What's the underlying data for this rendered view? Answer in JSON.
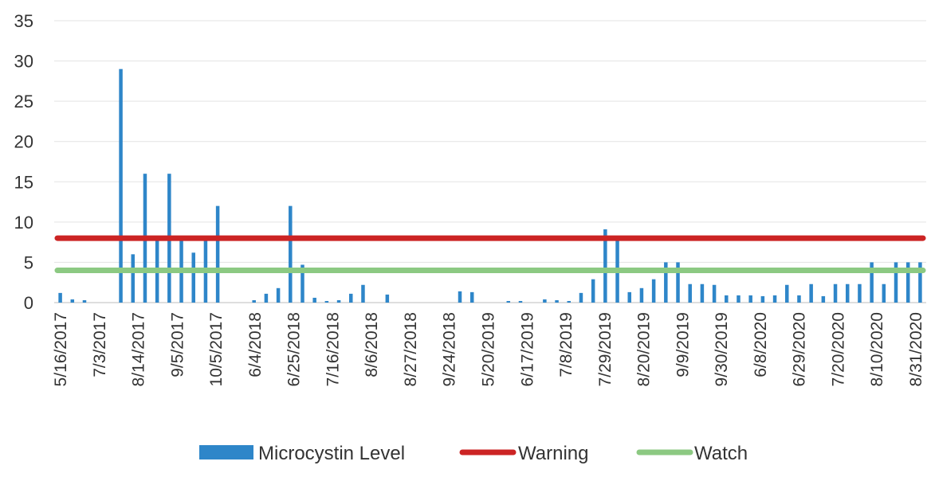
{
  "chart_data": {
    "type": "bar",
    "title": "",
    "xlabel": "",
    "ylabel": "",
    "ylim": [
      0,
      35
    ],
    "y_ticks": [
      0,
      5,
      10,
      15,
      20,
      25,
      30,
      35
    ],
    "grid": "horizontal",
    "legend_position": "bottom",
    "x_tick_labels": [
      "5/16/2017",
      "7/3/2017",
      "8/14/2017",
      "9/5/2017",
      "10/5/2017",
      "6/4/2018",
      "6/25/2018",
      "7/16/2018",
      "8/6/2018",
      "8/27/2018",
      "9/24/2018",
      "5/20/2019",
      "6/17/2019",
      "7/8/2019",
      "7/29/2019",
      "8/20/2019",
      "9/9/2019",
      "9/30/2019",
      "6/8/2020",
      "6/29/2020",
      "7/20/2020",
      "8/10/2020",
      "8/31/2020"
    ],
    "series": [
      {
        "name": "Microcystin Level",
        "kind": "bar",
        "color": "#2E86C9",
        "values": [
          1.2,
          0.4,
          0.3,
          0,
          0,
          29,
          6,
          16,
          8,
          16,
          8,
          6.2,
          7.7,
          12,
          0,
          0,
          0.3,
          1.1,
          1.8,
          12,
          4.7,
          0.6,
          0.2,
          0.3,
          1.1,
          2.2,
          0,
          1,
          0,
          0,
          0,
          0,
          0,
          1.4,
          1.3,
          0,
          0,
          0.2,
          0.2,
          0,
          0.4,
          0.3,
          0.2,
          1.2,
          2.9,
          9.1,
          8,
          1.3,
          1.8,
          2.9,
          5,
          5,
          2.3,
          2.3,
          2.2,
          0.9,
          0.9,
          0.9,
          0.8,
          0.9,
          2.2,
          0.9,
          2.3,
          0.8,
          2.3,
          2.3,
          2.3,
          5,
          2.3,
          5,
          5,
          5
        ]
      },
      {
        "name": "Warning",
        "kind": "line",
        "color": "#CC2424",
        "value": 8
      },
      {
        "name": "Watch",
        "kind": "line",
        "color": "#8CC982",
        "value": 4
      }
    ]
  }
}
